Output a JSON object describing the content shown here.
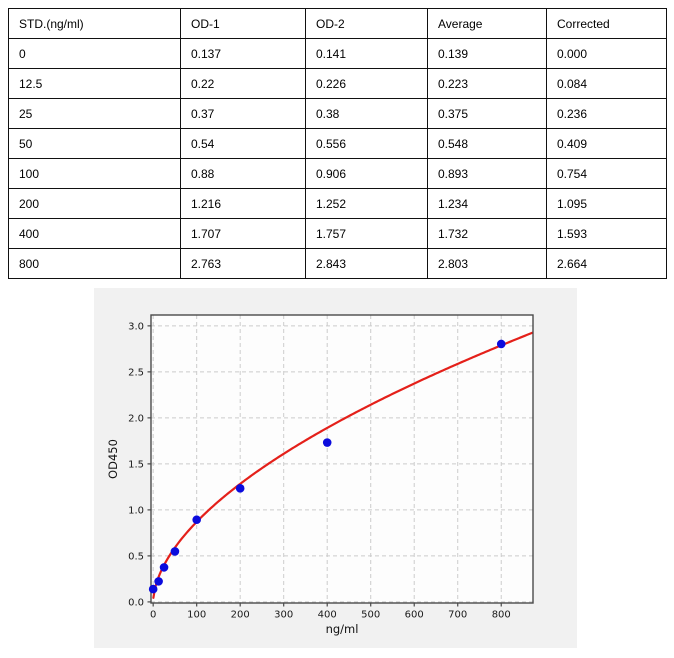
{
  "page": {
    "background": "#ffffff"
  },
  "table": {
    "headers": [
      "STD.(ng/ml)",
      "OD-1",
      "OD-2",
      "Average",
      "Corrected"
    ],
    "rows": [
      [
        "0",
        "0.137",
        "0.141",
        "0.139",
        "0.000"
      ],
      [
        "12.5",
        "0.22",
        "0.226",
        "0.223",
        "0.084"
      ],
      [
        "25",
        "0.37",
        "0.38",
        "0.375",
        "0.236"
      ],
      [
        "50",
        "0.54",
        "0.556",
        "0.548",
        "0.409"
      ],
      [
        "100",
        "0.88",
        "0.906",
        "0.893",
        "0.754"
      ],
      [
        "200",
        "1.216",
        "1.252",
        "1.234",
        "1.095"
      ],
      [
        "400",
        "1.707",
        "1.757",
        "1.732",
        "1.593"
      ],
      [
        "800",
        "2.763",
        "2.843",
        "2.803",
        "2.664"
      ]
    ]
  },
  "chart_data": {
    "type": "scatter",
    "title": "",
    "xlabel": "ng/ml",
    "ylabel": "OD450",
    "x": [
      0,
      12.5,
      25,
      50,
      100,
      200,
      400,
      800
    ],
    "y": [
      0.139,
      0.223,
      0.375,
      0.548,
      0.893,
      1.234,
      1.732,
      2.803
    ],
    "fit_curve": {
      "type": "power",
      "a": 0.066,
      "b": 0.56,
      "x_start": 0.5,
      "x_end": 873
    },
    "xlim": [
      -5,
      873
    ],
    "ylim": [
      -0.012,
      3.118
    ],
    "xticks": [
      0,
      100,
      200,
      300,
      400,
      500,
      600,
      700,
      800
    ],
    "yticks": [
      0.0,
      0.5,
      1.0,
      1.5,
      2.0,
      2.5,
      3.0
    ],
    "grid": true,
    "legend": null,
    "colors": {
      "marker": "#0b0bdd",
      "line": "#e4201a",
      "grid": "#cccccc",
      "spine": "#4a4a4a",
      "figure_bg": "#f1f1f1",
      "axes_bg": "#fdfdfd",
      "tick_label": "#1a1a1a"
    }
  }
}
